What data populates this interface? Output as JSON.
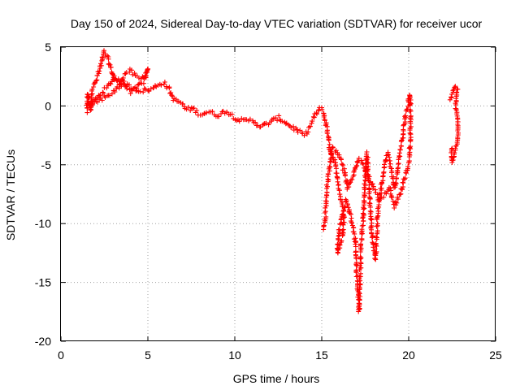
{
  "chart_data": {
    "type": "scatter",
    "title": "Day 150 of 2024, Sidereal Day-to-day VTEC variation (SDTVAR) for receiver ucor",
    "xlabel": "GPS time / hours",
    "ylabel": "SDTVAR / TECUs",
    "xlim": [
      0,
      25
    ],
    "ylim": [
      -20,
      5
    ],
    "xticks": [
      0,
      5,
      10,
      15,
      20,
      25
    ],
    "yticks": [
      -20,
      -15,
      -10,
      -5,
      0,
      5
    ],
    "grid": true,
    "marker": "plus",
    "series_color": "#ff0000",
    "trace_points": [
      [
        1.5,
        -0.5
      ],
      [
        1.5,
        0.5
      ],
      [
        1.55,
        1.0
      ],
      [
        1.6,
        0.3
      ],
      [
        1.7,
        -0.4
      ],
      [
        1.8,
        1.5
      ],
      [
        2.0,
        2.0
      ],
      [
        2.2,
        3.0
      ],
      [
        2.4,
        4.0
      ],
      [
        2.5,
        4.6
      ],
      [
        2.7,
        4.0
      ],
      [
        2.9,
        3.0
      ],
      [
        3.1,
        2.2
      ],
      [
        3.4,
        1.8
      ],
      [
        3.7,
        2.8
      ],
      [
        4.0,
        3.0
      ],
      [
        4.3,
        2.5
      ],
      [
        4.6,
        2.3
      ],
      [
        4.9,
        2.8
      ],
      [
        5.0,
        3.2
      ],
      [
        4.8,
        2.2
      ],
      [
        4.5,
        1.7
      ],
      [
        4.0,
        1.2
      ],
      [
        3.5,
        1.8
      ],
      [
        3.0,
        1.2
      ],
      [
        2.5,
        0.7
      ],
      [
        2.0,
        0.4
      ],
      [
        1.6,
        0.0
      ],
      [
        2.0,
        0.6
      ],
      [
        2.6,
        1.5
      ],
      [
        3.1,
        2.5
      ],
      [
        3.6,
        2.0
      ],
      [
        4.1,
        1.5
      ],
      [
        4.6,
        1.3
      ],
      [
        5.2,
        1.4
      ],
      [
        5.6,
        1.8
      ],
      [
        5.9,
        2.0
      ],
      [
        6.2,
        1.5
      ],
      [
        6.5,
        0.5
      ],
      [
        6.9,
        0.3
      ],
      [
        7.2,
        -0.3
      ],
      [
        7.6,
        -0.2
      ],
      [
        8.0,
        -0.7
      ],
      [
        8.5,
        -0.5
      ],
      [
        9.0,
        -0.8
      ],
      [
        9.5,
        -0.4
      ],
      [
        10.0,
        -1.0
      ],
      [
        10.5,
        -1.3
      ],
      [
        11.0,
        -1.2
      ],
      [
        11.5,
        -1.8
      ],
      [
        12.0,
        -1.4
      ],
      [
        12.5,
        -1.0
      ],
      [
        13.0,
        -1.5
      ],
      [
        13.5,
        -2.0
      ],
      [
        14.0,
        -2.5
      ],
      [
        14.3,
        -1.8
      ],
      [
        14.6,
        -0.8
      ],
      [
        14.9,
        -0.2
      ],
      [
        15.1,
        -0.5
      ],
      [
        15.3,
        -2.0
      ],
      [
        15.5,
        -4.0
      ],
      [
        15.7,
        -4.5
      ],
      [
        15.9,
        -6.0
      ],
      [
        16.1,
        -8.0
      ],
      [
        16.3,
        -9.0
      ],
      [
        16.2,
        -11.0
      ],
      [
        15.9,
        -12.5
      ],
      [
        16.0,
        -10.5
      ],
      [
        16.4,
        -8.0
      ],
      [
        16.7,
        -9.5
      ],
      [
        16.9,
        -11.0
      ],
      [
        17.0,
        -14.0
      ],
      [
        17.1,
        -16.0
      ],
      [
        17.15,
        -17.5
      ],
      [
        17.2,
        -14.5
      ],
      [
        17.3,
        -11.0
      ],
      [
        17.4,
        -9.0
      ],
      [
        17.5,
        -6.0
      ],
      [
        17.6,
        -4.0
      ],
      [
        17.7,
        -6.5
      ],
      [
        17.8,
        -9.0
      ],
      [
        17.9,
        -11.0
      ],
      [
        18.0,
        -12.0
      ],
      [
        18.1,
        -13.0
      ],
      [
        18.2,
        -9.5
      ],
      [
        18.4,
        -7.0
      ],
      [
        18.6,
        -5.0
      ],
      [
        18.8,
        -4.0
      ],
      [
        19.0,
        -5.5
      ],
      [
        19.2,
        -7.0
      ],
      [
        19.4,
        -5.0
      ],
      [
        19.6,
        -3.0
      ],
      [
        19.8,
        -1.0
      ],
      [
        20.0,
        0.5
      ],
      [
        20.1,
        1.0
      ],
      [
        20.1,
        -3.0
      ],
      [
        20.0,
        -5.0
      ],
      [
        19.8,
        -6.0
      ],
      [
        19.5,
        -7.5
      ],
      [
        19.2,
        -8.5
      ],
      [
        18.9,
        -7.0
      ],
      [
        18.6,
        -7.5
      ],
      [
        18.3,
        -8.0
      ],
      [
        18.0,
        -7.0
      ],
      [
        17.7,
        -6.0
      ],
      [
        17.4,
        -5.0
      ],
      [
        17.1,
        -4.5
      ],
      [
        16.8,
        -6.0
      ],
      [
        16.5,
        -7.0
      ],
      [
        16.2,
        -5.0
      ],
      [
        15.9,
        -4.0
      ],
      [
        15.6,
        -3.5
      ],
      [
        15.3,
        -7.0
      ],
      [
        15.2,
        -9.5
      ],
      [
        15.1,
        -10.5
      ]
    ],
    "trace_points_2": [
      [
        22.4,
        0.5
      ],
      [
        22.5,
        1.0
      ],
      [
        22.6,
        1.4
      ],
      [
        22.7,
        1.6
      ],
      [
        22.8,
        1.5
      ],
      [
        22.75,
        0.8
      ],
      [
        22.7,
        0.0
      ],
      [
        22.8,
        -1.0
      ],
      [
        22.85,
        -2.0
      ],
      [
        22.8,
        -3.0
      ],
      [
        22.7,
        -3.6
      ],
      [
        22.6,
        -4.2
      ],
      [
        22.5,
        -4.8
      ],
      [
        22.45,
        -4.2
      ],
      [
        22.5,
        -3.6
      ]
    ]
  }
}
